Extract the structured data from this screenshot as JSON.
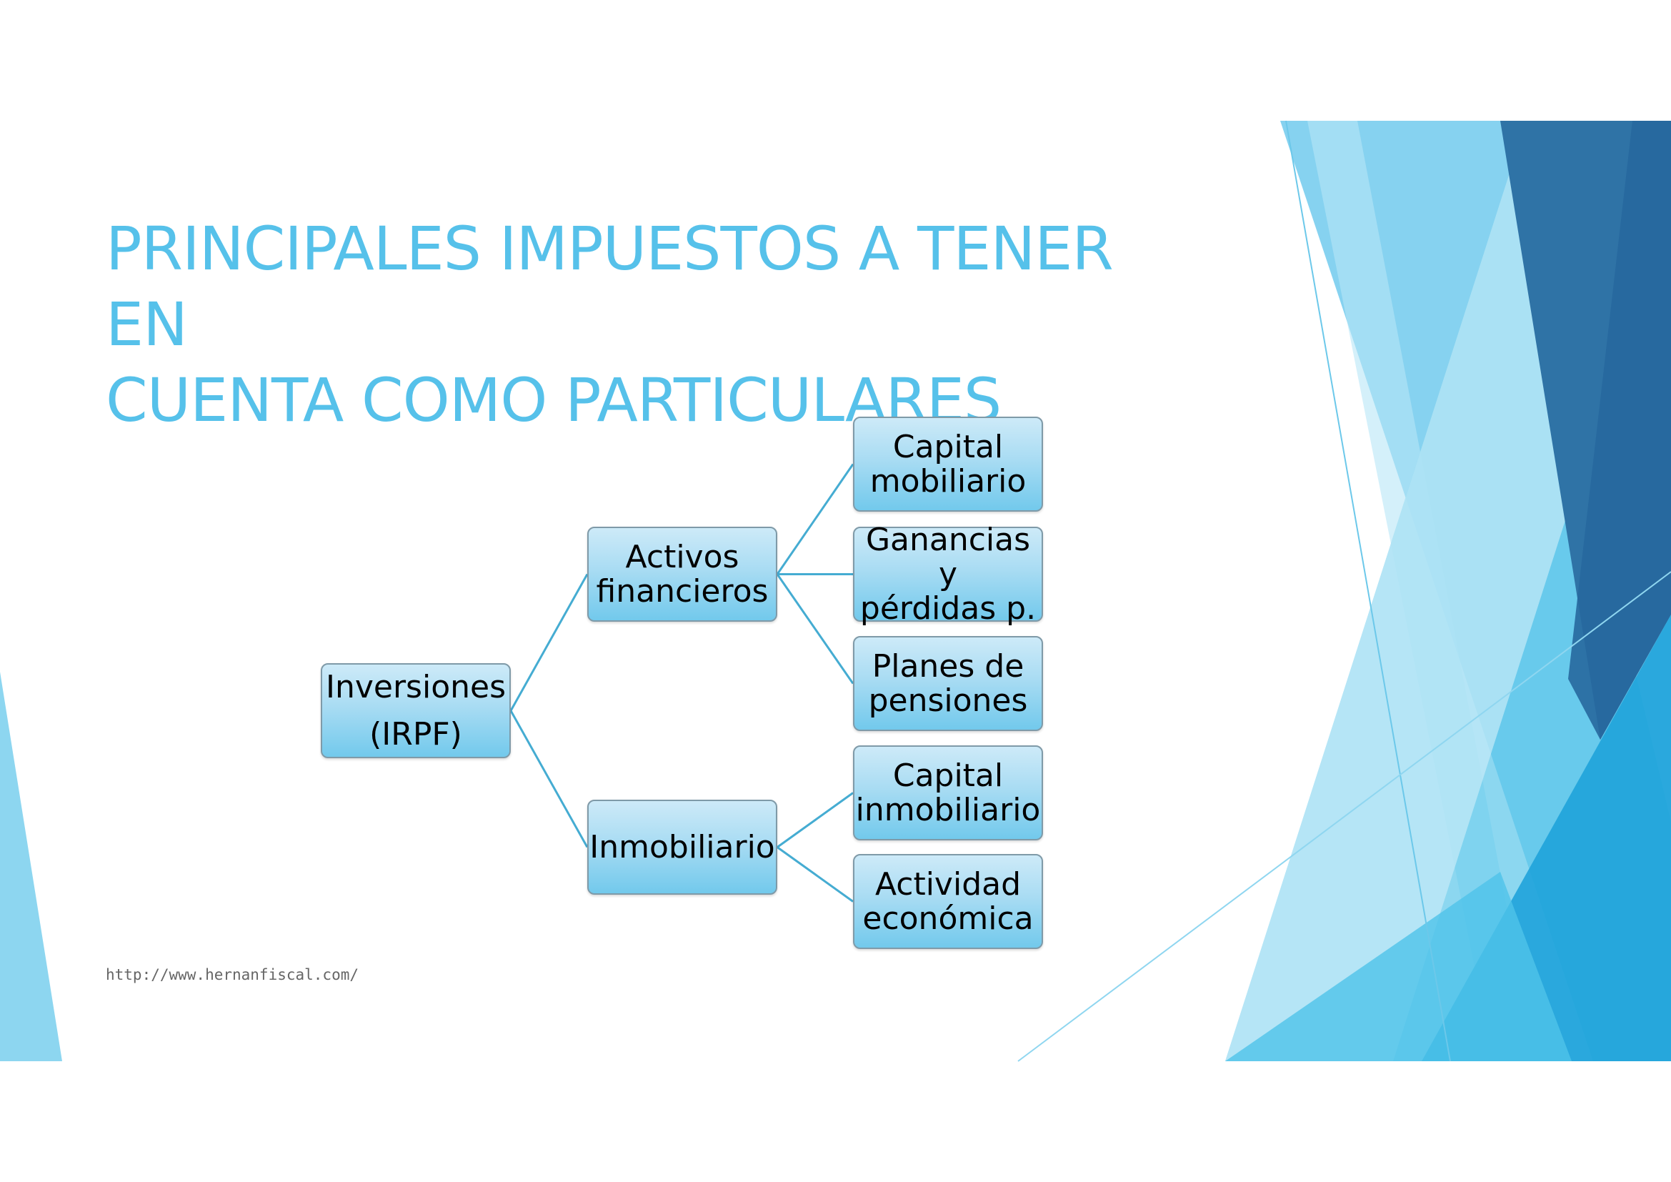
{
  "slide": {
    "title_line1": "PRINCIPALES IMPUESTOS A TENER EN",
    "title_line2": "CUENTA COMO PARTICULARES",
    "footer_url": "http://www.hernanfiscal.com/"
  },
  "diagram": {
    "root": {
      "label": "Inversiones\n(IRPF)"
    },
    "level1": [
      {
        "label": "Activos\nfinancieros"
      },
      {
        "label": "Inmobiliario"
      }
    ],
    "level2": [
      {
        "label": "Capital\nmobiliario",
        "parent": 0
      },
      {
        "label": "Ganancias y\npérdidas p.",
        "parent": 0
      },
      {
        "label": "Planes de\npensiones",
        "parent": 0
      },
      {
        "label": "Capital\ninmobiliario",
        "parent": 1
      },
      {
        "label": "Actividad\neconómica",
        "parent": 1
      }
    ]
  },
  "colors": {
    "title": "#56c1ea",
    "connector": "#45acd2",
    "box_fill": "#a9dcf3",
    "deco_dark": "#2f6fa3",
    "deco_light": "#7fd0ef"
  }
}
